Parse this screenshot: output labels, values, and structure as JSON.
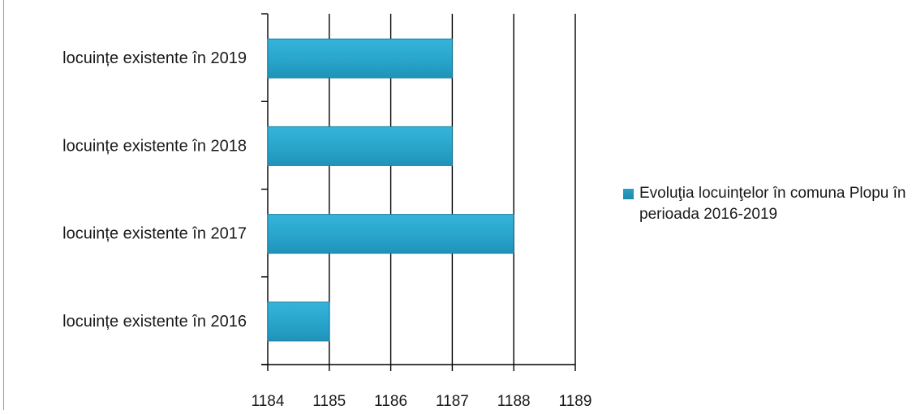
{
  "chart_data": {
    "type": "bar",
    "orientation": "horizontal",
    "categories": [
      "locuințe existente în 2019",
      "locuințe existente în 2018",
      "locuințe existente în 2017",
      "locuințe existente  în 2016"
    ],
    "series": [
      {
        "name": "Evoluţia locuinţelor în comuna Plopu în perioada 2016-2019",
        "values": [
          1187,
          1187,
          1188,
          1185
        ]
      }
    ],
    "xlim": [
      1184,
      1189
    ],
    "xticks": [
      "1184",
      "1185",
      "1186",
      "1187",
      "1188",
      "1189"
    ],
    "grid": "vertical",
    "legend_position": "right",
    "bar_color": "#2aa6cc",
    "bar_edge_color": "#1b7fa3"
  }
}
